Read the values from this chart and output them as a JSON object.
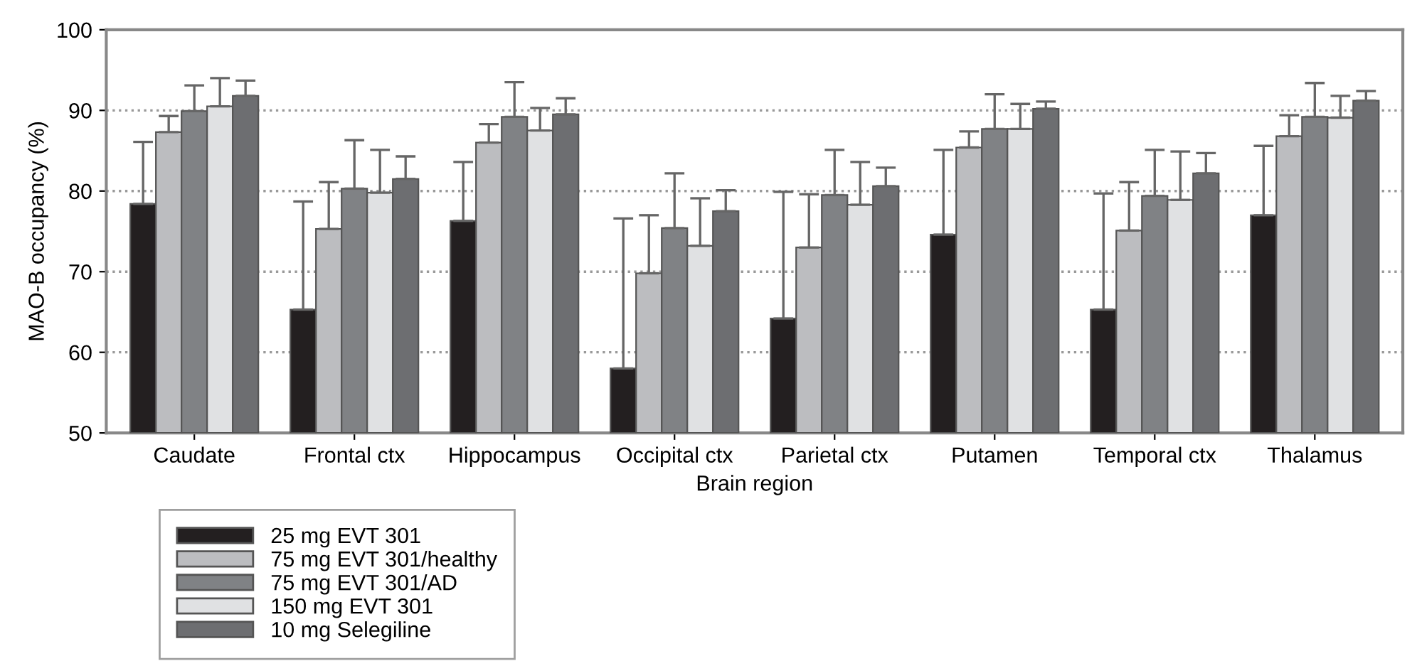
{
  "chart_data": {
    "type": "bar",
    "xlabel": "Brain region",
    "ylabel": "MAO-B occupancy (%)",
    "categories": [
      "Caudate",
      "Frontal ctx",
      "Hippocampus",
      "Occipital ctx",
      "Parietal ctx",
      "Putamen",
      "Temporal ctx",
      "Thalamus"
    ],
    "series": [
      {
        "name": "25 mg EVT 301",
        "color": "#231f20",
        "values": [
          78.4,
          65.3,
          76.3,
          58.0,
          64.2,
          74.6,
          65.3,
          77.0
        ],
        "errors": [
          [
            78.4,
            86.1
          ],
          [
            65.3,
            78.7
          ],
          [
            76.3,
            83.6
          ],
          [
            58.0,
            76.6
          ],
          [
            64.2,
            79.9
          ],
          [
            74.6,
            85.1
          ],
          [
            65.3,
            79.7
          ],
          [
            77.0,
            85.6
          ]
        ]
      },
      {
        "name": "75 mg EVT 301/healthy",
        "color": "#bcbdc0",
        "values": [
          87.3,
          75.3,
          86.0,
          69.8,
          73.0,
          85.4,
          75.1,
          86.8
        ],
        "errors": [
          [
            87.3,
            89.3
          ],
          [
            75.3,
            81.1
          ],
          [
            86.0,
            88.3
          ],
          [
            69.8,
            77.0
          ],
          [
            73.0,
            79.6
          ],
          [
            85.4,
            87.4
          ],
          [
            75.1,
            81.1
          ],
          [
            86.8,
            89.4
          ]
        ]
      },
      {
        "name": "75 mg EVT 301/AD",
        "color": "#808285",
        "values": [
          89.9,
          80.3,
          89.2,
          75.4,
          79.5,
          87.7,
          79.4,
          89.2
        ],
        "errors": [
          [
            89.9,
            93.1
          ],
          [
            80.3,
            86.3
          ],
          [
            89.2,
            93.5
          ],
          [
            75.4,
            82.2
          ],
          [
            79.5,
            85.1
          ],
          [
            87.7,
            92.0
          ],
          [
            79.4,
            85.1
          ],
          [
            89.2,
            93.4
          ]
        ]
      },
      {
        "name": "150 mg EVT 301",
        "color": "#e0e1e3",
        "values": [
          90.5,
          79.8,
          87.5,
          73.2,
          78.3,
          87.7,
          78.9,
          89.1
        ],
        "errors": [
          [
            90.5,
            94.0
          ],
          [
            79.8,
            85.1
          ],
          [
            87.5,
            90.3
          ],
          [
            73.2,
            79.1
          ],
          [
            78.3,
            83.6
          ],
          [
            87.7,
            90.8
          ],
          [
            78.9,
            84.9
          ],
          [
            89.1,
            91.8
          ]
        ]
      },
      {
        "name": "10 mg Selegiline",
        "color": "#6d6e71",
        "values": [
          91.8,
          81.5,
          89.5,
          77.5,
          80.6,
          90.2,
          82.2,
          91.2
        ],
        "errors": [
          [
            91.8,
            93.7
          ],
          [
            81.5,
            84.3
          ],
          [
            89.5,
            91.5
          ],
          [
            77.5,
            80.1
          ],
          [
            80.6,
            82.9
          ],
          [
            90.2,
            91.1
          ],
          [
            82.2,
            84.7
          ],
          [
            91.2,
            92.4
          ]
        ]
      }
    ],
    "ylim": [
      50,
      100
    ],
    "yticks": [
      50,
      60,
      70,
      80,
      90,
      100
    ],
    "grid": "y",
    "legend": "bottom left"
  }
}
